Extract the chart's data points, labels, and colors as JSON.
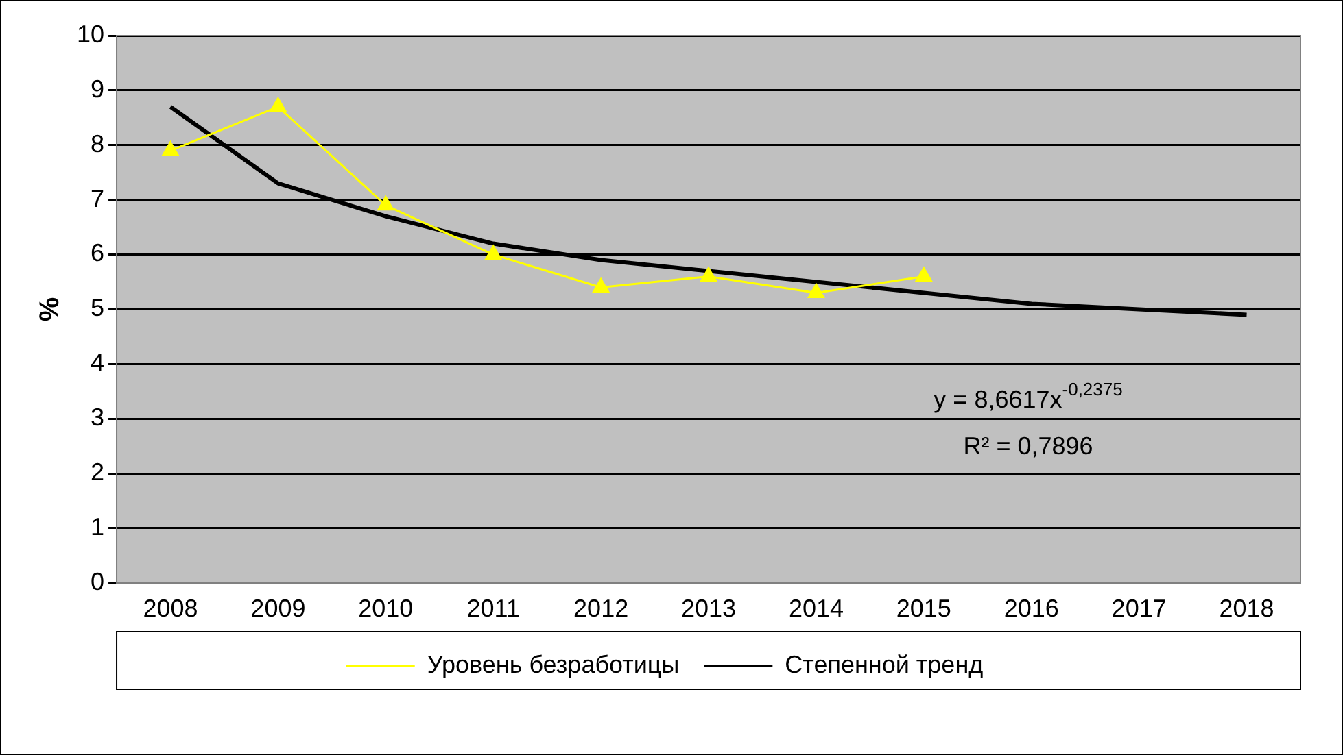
{
  "chart_data": {
    "type": "line",
    "ylabel": "%",
    "categories": [
      "2008",
      "2009",
      "2010",
      "2011",
      "2012",
      "2013",
      "2014",
      "2015",
      "2016",
      "2017",
      "2018"
    ],
    "series": [
      {
        "name": "Уровень безработицы",
        "color": "#ffff00",
        "marker": "triangle",
        "values": [
          7.9,
          8.7,
          6.9,
          6.0,
          5.4,
          5.6,
          5.3,
          5.6,
          null,
          null,
          null
        ]
      },
      {
        "name": "Степенной тренд",
        "color": "#000000",
        "marker": "none",
        "values": [
          8.7,
          7.3,
          6.7,
          6.2,
          5.9,
          5.7,
          5.5,
          5.3,
          5.1,
          5.0,
          4.9
        ]
      }
    ],
    "ylim": [
      0,
      10
    ],
    "yticks": [
      0,
      1,
      2,
      3,
      4,
      5,
      6,
      7,
      8,
      9,
      10
    ],
    "grid": "y",
    "legend": "bottom",
    "annotations": [
      "y = 8,6617x$^{-0,2375}$",
      "R² = 0,7896"
    ]
  }
}
